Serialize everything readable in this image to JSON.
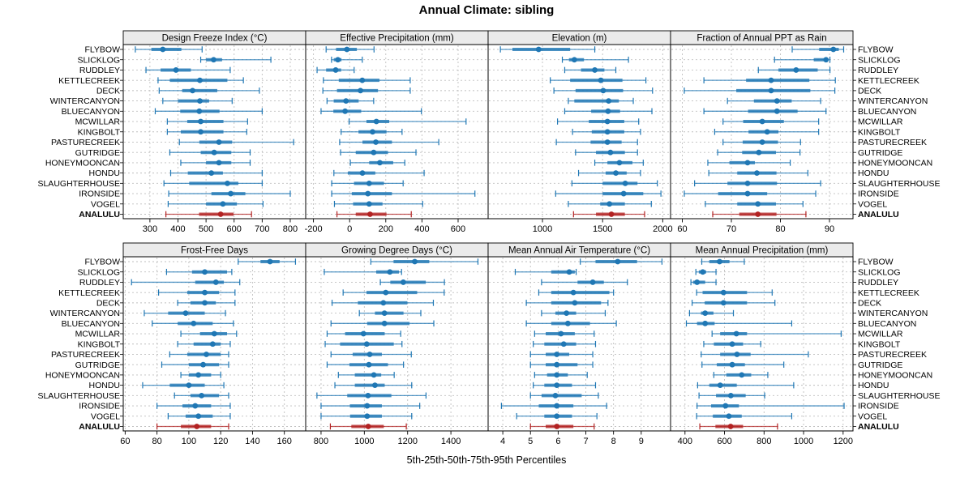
{
  "title": "Annual Climate: sibling",
  "caption": "5th-25th-50th-75th-95th Percentiles",
  "colors": {
    "blue": "#1F77B4",
    "blue_light": "#8FBCDB",
    "red": "#B22222",
    "red_light": "#D99090",
    "grid": "#BFBFBF",
    "strip_bg": "#EBEBEB",
    "panel_border": "#000000",
    "text": "#000000"
  },
  "chart_data": {
    "type": "scatter",
    "note": "Trellis percentile interval plot: each row shows 5th-25th-50th-75th-95th percentiles; thin line 5-95 with end caps, thick bar 25-75, dot = median.",
    "percentiles": [
      5,
      25,
      50,
      75,
      95
    ],
    "sites": [
      "FLYBOW",
      "SLICKLOG",
      "RUDDLEY",
      "KETTLECREEK",
      "DECK",
      "WINTERCANYON",
      "BLUECANYON",
      "MCWILLAR",
      "KINGBOLT",
      "PASTURECREEK",
      "GUTRIDGE",
      "HONEYMOONCAN",
      "HONDU",
      "SLAUGHTERHOUSE",
      "IRONSIDE",
      "VOGEL",
      "ANALULU"
    ],
    "highlight_site": "ANALULU",
    "panels": [
      {
        "label": "Design Freeze Index (°C)",
        "grid_row": 0,
        "ticks": [
          300,
          400,
          500,
          600,
          700,
          800
        ],
        "domain": [
          205,
          855
        ],
        "values": [
          [
            248,
            305,
            346,
            412,
            486
          ],
          [
            481,
            500,
            527,
            557,
            731
          ],
          [
            286,
            338,
            393,
            446,
            586
          ],
          [
            329,
            371,
            478,
            576,
            633
          ],
          [
            333,
            415,
            452,
            540,
            690
          ],
          [
            346,
            400,
            478,
            511,
            593
          ],
          [
            319,
            408,
            476,
            548,
            700
          ],
          [
            362,
            433,
            481,
            562,
            648
          ],
          [
            362,
            410,
            481,
            562,
            645
          ],
          [
            405,
            476,
            546,
            593,
            812
          ],
          [
            371,
            481,
            529,
            590,
            657
          ],
          [
            410,
            500,
            546,
            590,
            657
          ],
          [
            374,
            435,
            519,
            560,
            700
          ],
          [
            350,
            440,
            576,
            615,
            700
          ],
          [
            367,
            519,
            588,
            640,
            800
          ],
          [
            365,
            500,
            560,
            610,
            703
          ],
          [
            357,
            475,
            552,
            598,
            662
          ]
        ]
      },
      {
        "label": "Effective Precipitation (mm)",
        "grid_row": 0,
        "ticks": [
          -200,
          0,
          200,
          400,
          600
        ],
        "domain": [
          -243,
          766
        ],
        "values": [
          [
            -130,
            -75,
            -15,
            40,
            135
          ],
          [
            -100,
            -88,
            -65,
            -45,
            70
          ],
          [
            -180,
            -130,
            -77,
            -47,
            25
          ],
          [
            -145,
            -60,
            70,
            165,
            335
          ],
          [
            -148,
            -70,
            60,
            157,
            335
          ],
          [
            -125,
            -88,
            -20,
            50,
            133
          ],
          [
            -158,
            -90,
            -25,
            64,
            397
          ],
          [
            -3,
            93,
            148,
            219,
            644
          ],
          [
            -47,
            49,
            127,
            204,
            290
          ],
          [
            -55,
            71,
            145,
            234,
            493
          ],
          [
            -50,
            34,
            133,
            212,
            367
          ],
          [
            4,
            108,
            167,
            241,
            305
          ],
          [
            -87,
            -10,
            71,
            142,
            412
          ],
          [
            -99,
            24,
            108,
            190,
            296
          ],
          [
            -99,
            12,
            101,
            234,
            693
          ],
          [
            -84,
            19,
            108,
            182,
            404
          ],
          [
            -70,
            34,
            113,
            204,
            341
          ]
        ]
      },
      {
        "label": "Elevation (m)",
        "grid_row": 0,
        "ticks": [
          1000,
          1500,
          2000
        ],
        "domain": [
          548,
          2065
        ],
        "values": [
          [
            650,
            750,
            968,
            1230,
            1435
          ],
          [
            1165,
            1220,
            1265,
            1345,
            1715
          ],
          [
            1185,
            1320,
            1435,
            1515,
            1610
          ],
          [
            1065,
            1230,
            1485,
            1665,
            1860
          ],
          [
            1095,
            1275,
            1505,
            1670,
            1915
          ],
          [
            1215,
            1265,
            1550,
            1635,
            1755
          ],
          [
            1185,
            1405,
            1545,
            1645,
            1910
          ],
          [
            1125,
            1385,
            1540,
            1680,
            1800
          ],
          [
            1250,
            1410,
            1540,
            1680,
            1815
          ],
          [
            1115,
            1400,
            1540,
            1658,
            1790
          ],
          [
            1275,
            1445,
            1565,
            1685,
            1790
          ],
          [
            1435,
            1540,
            1640,
            1748,
            1838
          ],
          [
            1300,
            1525,
            1610,
            1700,
            1815
          ],
          [
            1245,
            1500,
            1688,
            1790,
            1955
          ],
          [
            1110,
            1500,
            1675,
            1838,
            1985
          ],
          [
            1215,
            1480,
            1557,
            1685,
            1905
          ],
          [
            1258,
            1445,
            1573,
            1685,
            1849
          ]
        ]
      },
      {
        "label": "Fraction of Annual PPT as Rain",
        "grid_row": 0,
        "ticks": [
          60,
          70,
          80,
          90
        ],
        "domain": [
          57.6,
          94.8
        ],
        "values": [
          [
            82.4,
            87.9,
            90.8,
            91.9,
            92.9
          ],
          [
            78.8,
            86.8,
            89.3,
            89.7,
            90.1
          ],
          [
            75.5,
            79.6,
            83.2,
            87.6,
            90.1
          ],
          [
            64.4,
            73.0,
            78.1,
            85.9,
            91.2
          ],
          [
            60.4,
            71.0,
            78.1,
            86.1,
            91.1
          ],
          [
            69.2,
            74.6,
            79.3,
            82.3,
            88.2
          ],
          [
            64.4,
            73.4,
            79.3,
            83.5,
            89.3
          ],
          [
            68.3,
            72.4,
            76.3,
            80.7,
            87.8
          ],
          [
            66.6,
            73.5,
            77.3,
            79.6,
            87.8
          ],
          [
            68.3,
            72.3,
            76.3,
            79.5,
            84.1
          ],
          [
            67.2,
            72.2,
            75.6,
            79.1,
            84.0
          ],
          [
            65.2,
            69.6,
            73.3,
            74.8,
            82.0
          ],
          [
            65.4,
            71.2,
            75.2,
            79.2,
            85.6
          ],
          [
            62.5,
            69.2,
            73.3,
            79.3,
            88.2
          ],
          [
            60.4,
            67.3,
            73.3,
            77.3,
            87.2
          ],
          [
            64.7,
            71.2,
            75.4,
            79.1,
            84.6
          ],
          [
            66.2,
            71.6,
            75.4,
            79.2,
            85.2
          ]
        ]
      },
      {
        "label": "Frost-Free Days",
        "grid_row": 1,
        "ticks": [
          60,
          80,
          100,
          120,
          140,
          160
        ],
        "domain": [
          58.8,
          173.4
        ],
        "values": [
          [
            131,
            145,
            151,
            157,
            167
          ],
          [
            86,
            102,
            110,
            124,
            127
          ],
          [
            64,
            104,
            117,
            122,
            132
          ],
          [
            81,
            99,
            110,
            119,
            129
          ],
          [
            93,
            101,
            110,
            117,
            129
          ],
          [
            72,
            87,
            98,
            110,
            123
          ],
          [
            77,
            93,
            103,
            115,
            128
          ],
          [
            95,
            107,
            116,
            124,
            130
          ],
          [
            93,
            103,
            115,
            120,
            126
          ],
          [
            88,
            99,
            111,
            120,
            125
          ],
          [
            83,
            100,
            109,
            119,
            125
          ],
          [
            95,
            100,
            106,
            114,
            120
          ],
          [
            71,
            88,
            100,
            110,
            122
          ],
          [
            91,
            101,
            108,
            119,
            125
          ],
          [
            80,
            96,
            104,
            114,
            126
          ],
          [
            87,
            98,
            106,
            115,
            126
          ],
          [
            80,
            95,
            105,
            114,
            125
          ]
        ]
      },
      {
        "label": "Growing Degree Days (°C)",
        "grid_row": 1,
        "ticks": [
          800,
          1000,
          1200,
          1400
        ],
        "domain": [
          729,
          1572
        ],
        "values": [
          [
            1030,
            1135,
            1233,
            1300,
            1525
          ],
          [
            815,
            1055,
            1118,
            1160,
            1172
          ],
          [
            1074,
            1120,
            1180,
            1284,
            1370
          ],
          [
            902,
            1010,
            1099,
            1244,
            1369
          ],
          [
            851,
            970,
            1088,
            1199,
            1319
          ],
          [
            977,
            1049,
            1093,
            1181,
            1261
          ],
          [
            846,
            1013,
            1093,
            1209,
            1321
          ],
          [
            828,
            911,
            996,
            1094,
            1168
          ],
          [
            819,
            888,
            1011,
            1136,
            1174
          ],
          [
            846,
            946,
            1025,
            1081,
            1217
          ],
          [
            828,
            931,
            1021,
            1109,
            1181
          ],
          [
            880,
            956,
            1044,
            1078,
            1138
          ],
          [
            864,
            956,
            1049,
            1094,
            1219
          ],
          [
            781,
            921,
            1017,
            1125,
            1285
          ],
          [
            800,
            933,
            1013,
            1081,
            1256
          ],
          [
            800,
            934,
            1013,
            1081,
            1219
          ],
          [
            843,
            940,
            1018,
            1090,
            1194
          ]
        ]
      },
      {
        "label": "Mean Annual Air Temperature (°C)",
        "grid_row": 1,
        "ticks": [
          4,
          5,
          6,
          7,
          8,
          9
        ],
        "domain": [
          3.47,
          10.06
        ],
        "values": [
          [
            6.8,
            7.35,
            8.15,
            8.85,
            9.75
          ],
          [
            4.45,
            5.75,
            6.4,
            6.6,
            6.65
          ],
          [
            5.4,
            6.7,
            7.25,
            7.65,
            8.5
          ],
          [
            5.3,
            5.75,
            6.55,
            7.85,
            8.0
          ],
          [
            4.85,
            5.75,
            6.6,
            7.55,
            7.8
          ],
          [
            5.4,
            5.9,
            6.3,
            6.65,
            7.7
          ],
          [
            4.85,
            5.75,
            6.35,
            7.15,
            8.1
          ],
          [
            5.15,
            5.55,
            6.1,
            6.6,
            7.3
          ],
          [
            5.1,
            5.5,
            6.2,
            6.65,
            7.35
          ],
          [
            5.0,
            5.55,
            5.95,
            6.4,
            7.25
          ],
          [
            5.0,
            5.55,
            5.95,
            6.7,
            7.25
          ],
          [
            5.15,
            5.6,
            5.95,
            6.35,
            7.05
          ],
          [
            5.1,
            5.5,
            5.95,
            6.5,
            7.35
          ],
          [
            5.0,
            5.4,
            5.9,
            6.85,
            7.45
          ],
          [
            3.95,
            5.3,
            5.95,
            6.55,
            7.75
          ],
          [
            4.5,
            5.5,
            5.95,
            6.5,
            7.4
          ],
          [
            5.0,
            5.55,
            5.95,
            6.55,
            7.3
          ]
        ]
      },
      {
        "label": "Mean Annual Precipitation (mm)",
        "grid_row": 1,
        "ticks": [
          400,
          600,
          800,
          1000,
          1200
        ],
        "domain": [
          327,
          1250
        ],
        "values": [
          [
            485,
            523,
            575,
            625,
            700
          ],
          [
            455,
            470,
            490,
            507,
            557
          ],
          [
            430,
            441,
            461,
            502,
            557
          ],
          [
            459,
            489,
            595,
            714,
            841
          ],
          [
            436,
            500,
            595,
            714,
            855
          ],
          [
            423,
            481,
            502,
            544,
            645
          ],
          [
            407,
            461,
            502,
            550,
            940
          ],
          [
            537,
            578,
            660,
            714,
            1190
          ],
          [
            495,
            546,
            639,
            694,
            783
          ],
          [
            482,
            578,
            663,
            732,
            1024
          ],
          [
            486,
            561,
            639,
            703,
            900
          ],
          [
            546,
            609,
            687,
            735,
            819
          ],
          [
            464,
            523,
            578,
            662,
            950
          ],
          [
            471,
            557,
            632,
            707,
            803
          ],
          [
            461,
            532,
            605,
            673,
            1205
          ],
          [
            459,
            541,
            622,
            687,
            940
          ],
          [
            475,
            554,
            631,
            694,
            868
          ]
        ]
      }
    ]
  }
}
